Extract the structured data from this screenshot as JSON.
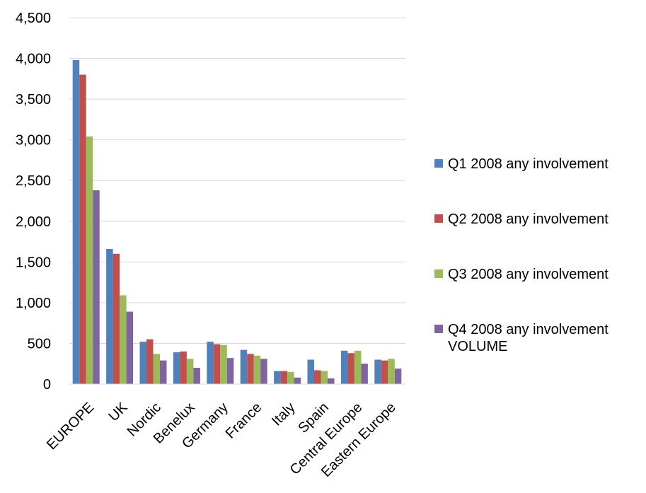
{
  "chart_data": {
    "type": "bar",
    "categories": [
      "EUROPE",
      "UK",
      "Nordic",
      "Benelux",
      "Germany",
      "France",
      "Italy",
      "Spain",
      "Central Europe",
      "Eastern Europe"
    ],
    "series": [
      {
        "name": "Q1 2008 any involvement",
        "color": "#4F81BD",
        "values": [
          3980,
          1660,
          520,
          390,
          520,
          420,
          160,
          300,
          410,
          300
        ]
      },
      {
        "name": "Q2 2008 any involvement",
        "color": "#C0504D",
        "values": [
          3800,
          1600,
          550,
          400,
          490,
          370,
          160,
          170,
          380,
          290
        ]
      },
      {
        "name": "Q3 2008 any involvement",
        "color": "#9BBB59",
        "values": [
          3040,
          1090,
          370,
          310,
          480,
          350,
          150,
          160,
          410,
          310
        ]
      },
      {
        "name": "Q4 2008 any involvement VOLUME",
        "color": "#8064A2",
        "values": [
          2380,
          890,
          290,
          200,
          320,
          310,
          80,
          70,
          250,
          190
        ]
      }
    ],
    "ylim": [
      0,
      4500
    ],
    "yticks": [
      0,
      500,
      1000,
      1500,
      2000,
      2500,
      3000,
      3500,
      4000,
      4500
    ],
    "ytick_labels": [
      "0",
      "500",
      "1,000",
      "1,500",
      "2,000",
      "2,500",
      "3,000",
      "3,500",
      "4,000",
      "4,500"
    ],
    "title": "",
    "xlabel": "",
    "ylabel": "",
    "grid": "horizontal",
    "legend_position": "right"
  }
}
